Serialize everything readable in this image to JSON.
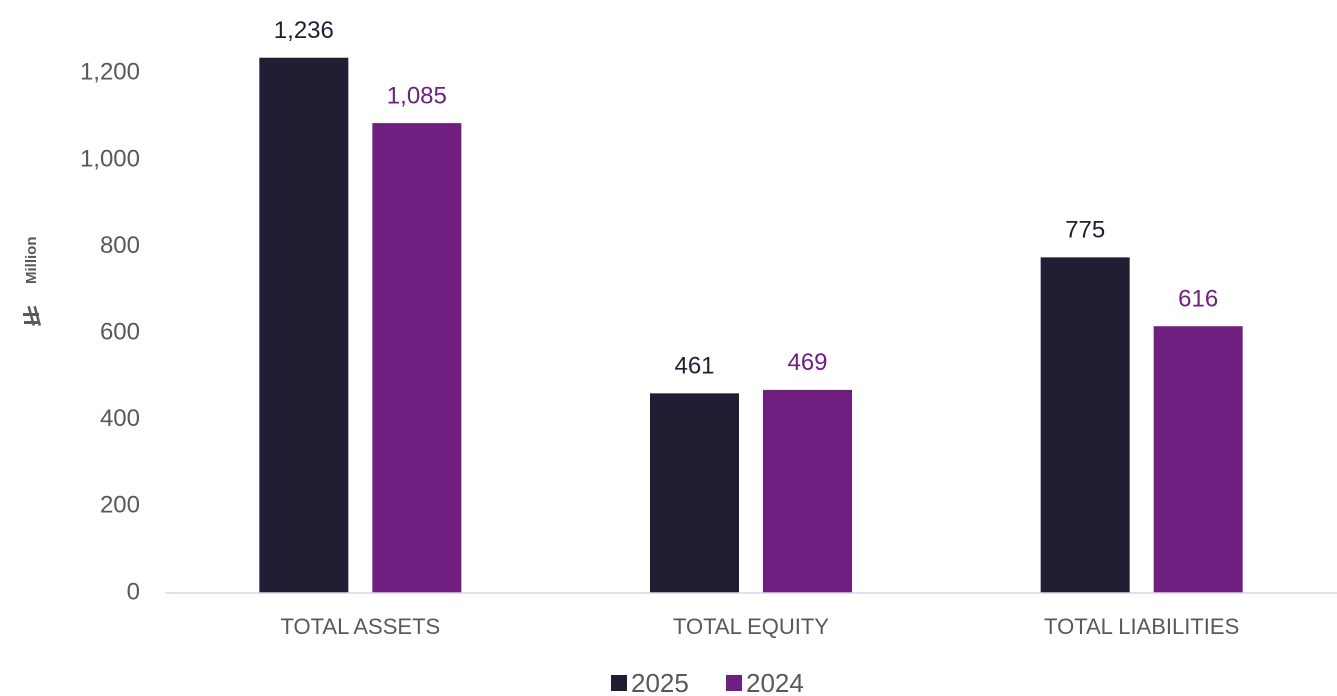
{
  "chart_data": {
    "type": "bar",
    "y_label": "Million",
    "categories": [
      "TOTAL ASSETS",
      "TOTAL EQUITY",
      "TOTAL LIABILITIES"
    ],
    "series": [
      {
        "name": "2025",
        "color": "#231d33",
        "values": [
          1236,
          461,
          775
        ],
        "value_labels": [
          "1,236",
          "461",
          "775"
        ]
      },
      {
        "name": "2024",
        "color": "#6f1f80",
        "values": [
          1085,
          469,
          616
        ],
        "value_labels": [
          "1,085",
          "469",
          "616"
        ]
      }
    ],
    "ylim": [
      0,
      1300
    ],
    "yticks": [
      0,
      200,
      400,
      600,
      800,
      {
        "value": 1000,
        "label": "1,000"
      },
      {
        "value": 1200,
        "label": "1,200"
      }
    ],
    "grid": false,
    "legend": "bottom"
  }
}
